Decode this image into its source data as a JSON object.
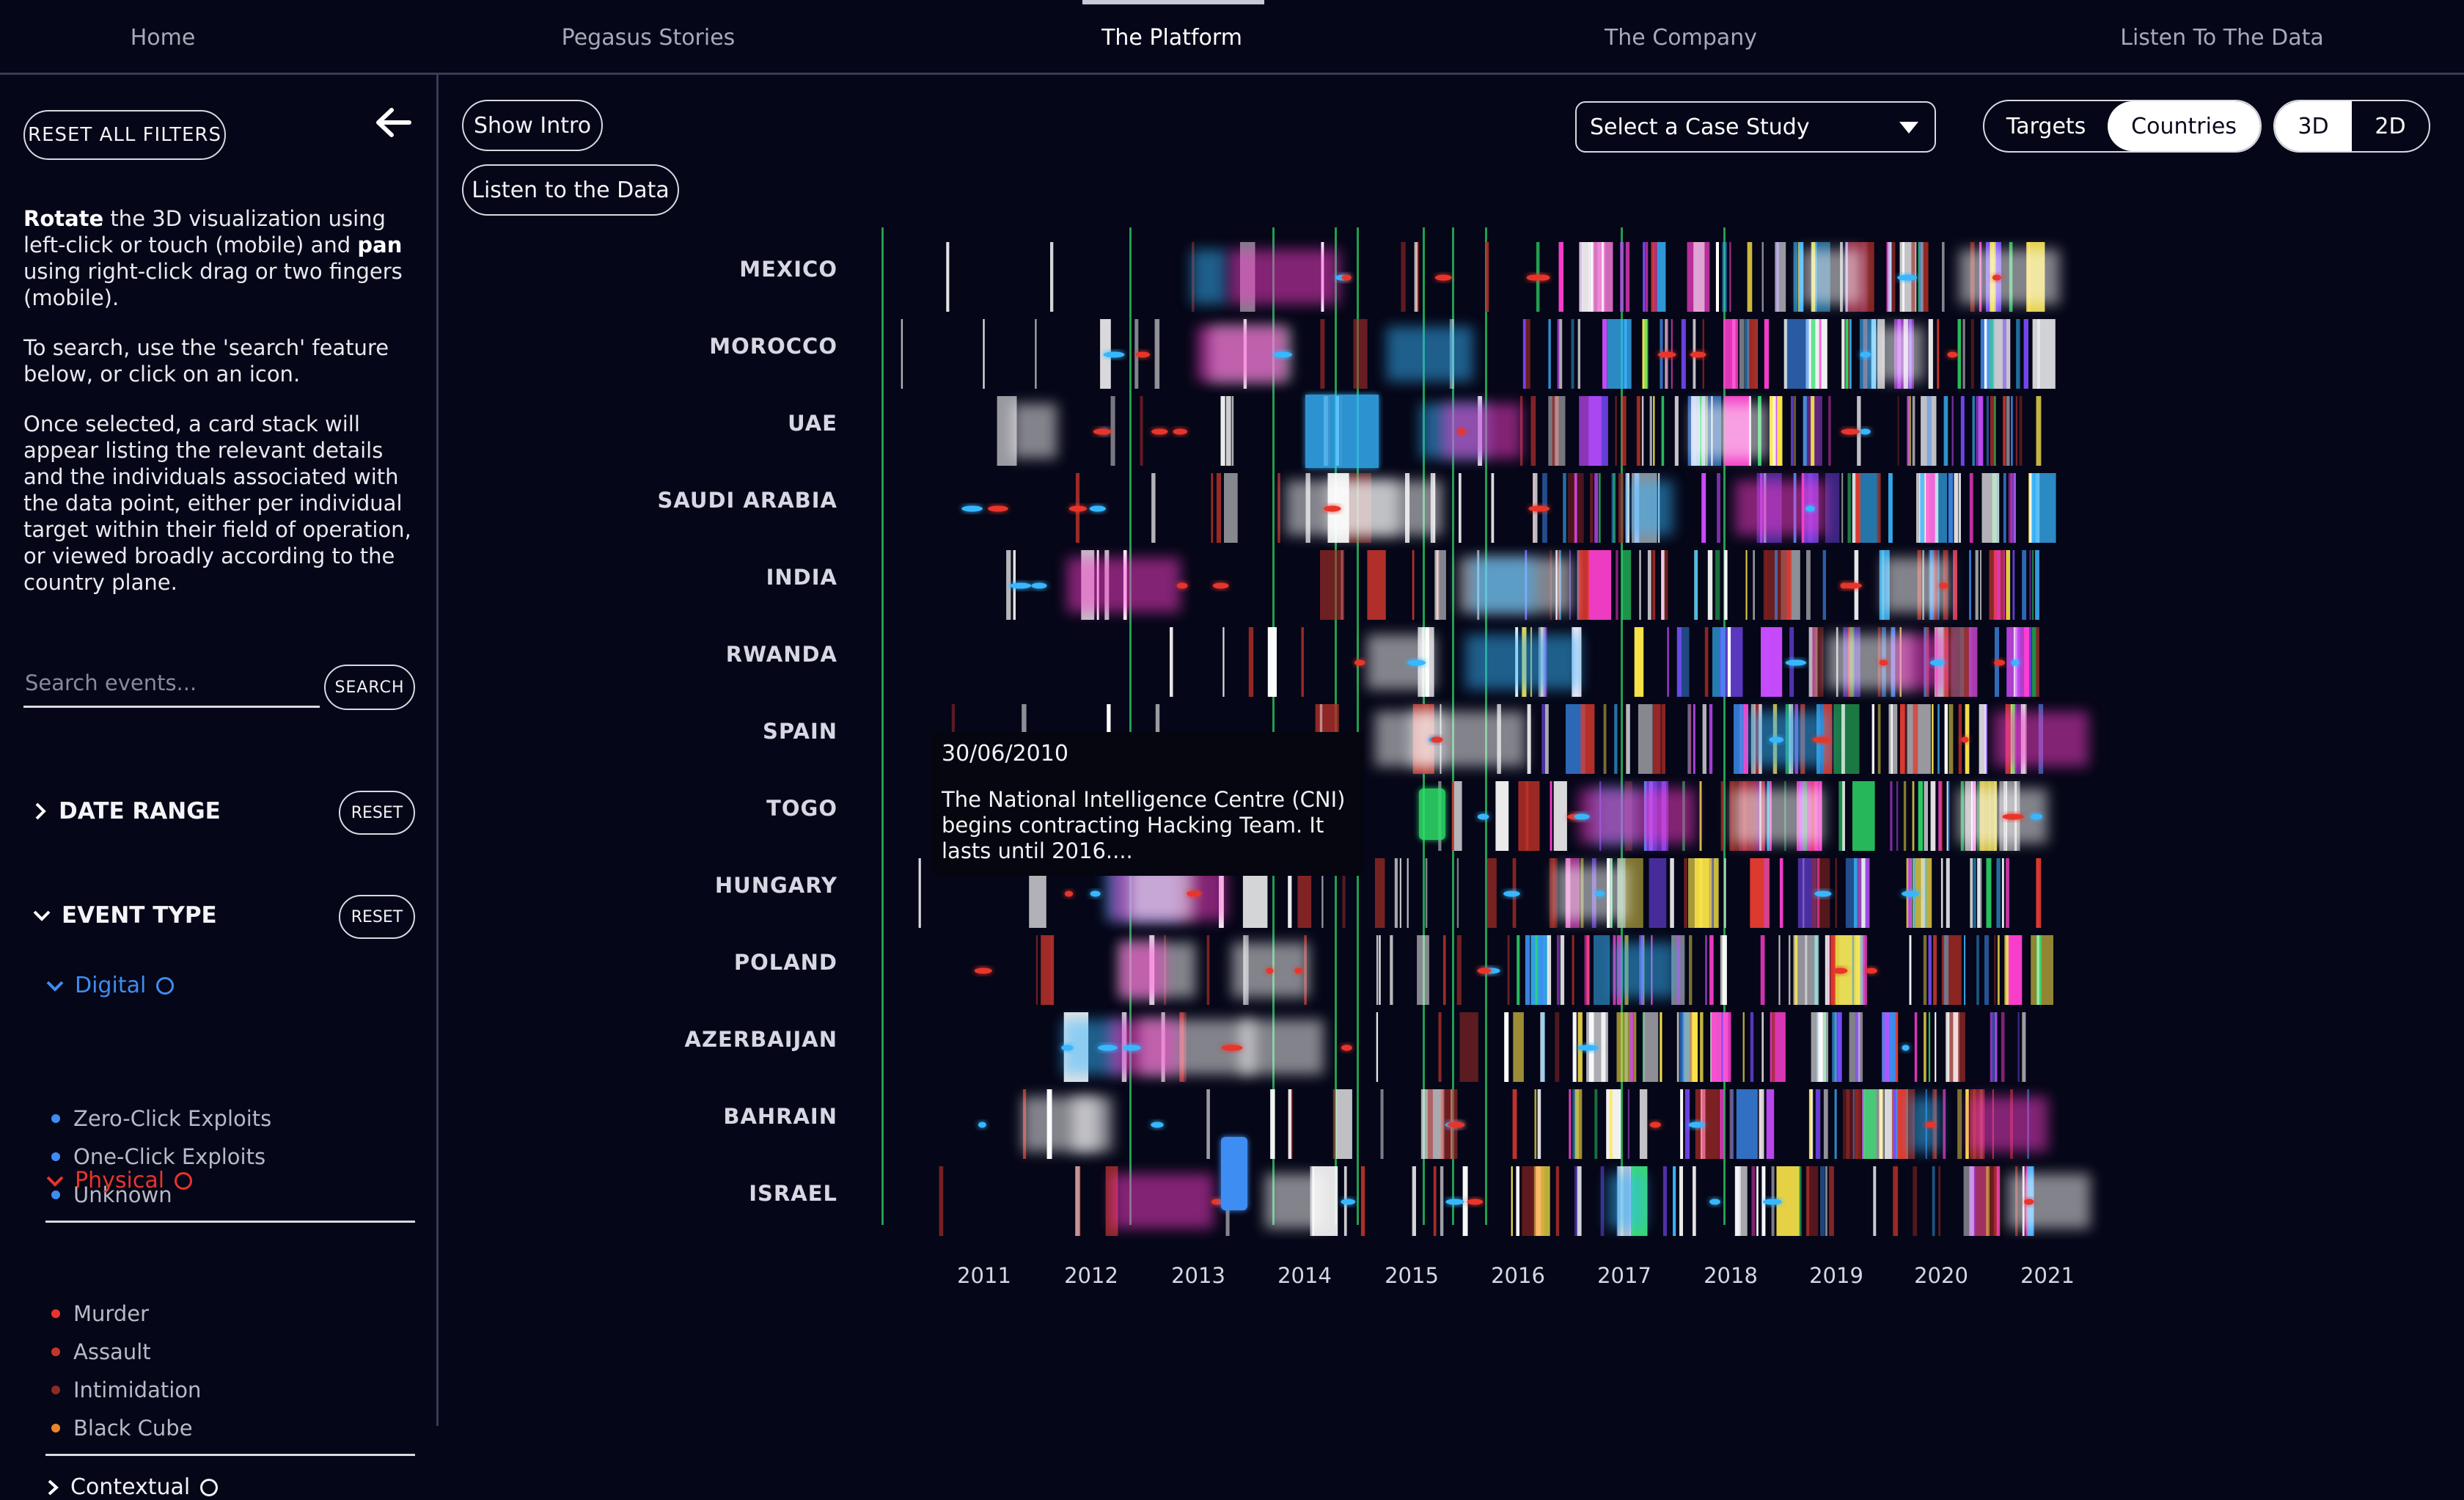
{
  "nav": {
    "items": [
      "Home",
      "Pegasus Stories",
      "The Platform",
      "The Company",
      "Listen To The Data"
    ],
    "active": "The Platform"
  },
  "sidebar": {
    "reset_all": "RESET ALL FILTERS",
    "instructions": [
      {
        "bold1": "Rotate",
        "t1": " the 3D visualization using left-click or touch (mobile) and ",
        "bold2": "pan",
        "t2": " using right-click drag or two fingers (mobile)."
      },
      {
        "text": "To search, use the 'search' feature below, or click on an icon."
      },
      {
        "text": "Once selected, a card stack will appear listing the relevant details and the individuals associated with the data point, either per individual target within their field of operation, or viewed broadly according to the country plane."
      }
    ],
    "search": {
      "placeholder": "Search events...",
      "button": "SEARCH"
    },
    "date_range": {
      "title": "DATE RANGE",
      "reset": "RESET"
    },
    "event_type": {
      "title": "EVENT TYPE",
      "reset": "RESET"
    },
    "digital": {
      "label": "Digital",
      "color": "#3d8df2",
      "items": [
        "Zero-Click Exploits",
        "One-Click Exploits",
        "Unknown"
      ]
    },
    "physical": {
      "label": "Physical",
      "color": "#e8342c",
      "items": [
        {
          "label": "Murder",
          "color": "#e8342c"
        },
        {
          "label": "Assault",
          "color": "#c3352b"
        },
        {
          "label": "Intimidation",
          "color": "#8e2a24"
        },
        {
          "label": "Black Cube",
          "color": "#e8862a"
        }
      ]
    },
    "contextual": {
      "label": "Contextual"
    }
  },
  "controls": {
    "show_intro": "Show Intro",
    "listen": "Listen to the Data",
    "case_study": "Select a Case Study",
    "view_toggle": [
      "Targets",
      "Countries"
    ],
    "view_active": "Countries",
    "dim_toggle": [
      "3D",
      "2D"
    ],
    "dim_active": "3D"
  },
  "viz": {
    "countries": [
      "MEXICO",
      "MOROCCO",
      "UAE",
      "SAUDI ARABIA",
      "INDIA",
      "RWANDA",
      "SPAIN",
      "TOGO",
      "HUNGARY",
      "POLAND",
      "AZERBAIJAN",
      "BAHRAIN",
      "ISRAEL"
    ],
    "years": [
      "2011",
      "2012",
      "2013",
      "2014",
      "2015",
      "2016",
      "2017",
      "2018",
      "2019",
      "2020",
      "2021"
    ]
  },
  "tooltip": {
    "date": "30/06/2010",
    "text": "The National Intelligence Centre (CNI) begins contracting Hacking Team. It lasts until 2016...."
  }
}
